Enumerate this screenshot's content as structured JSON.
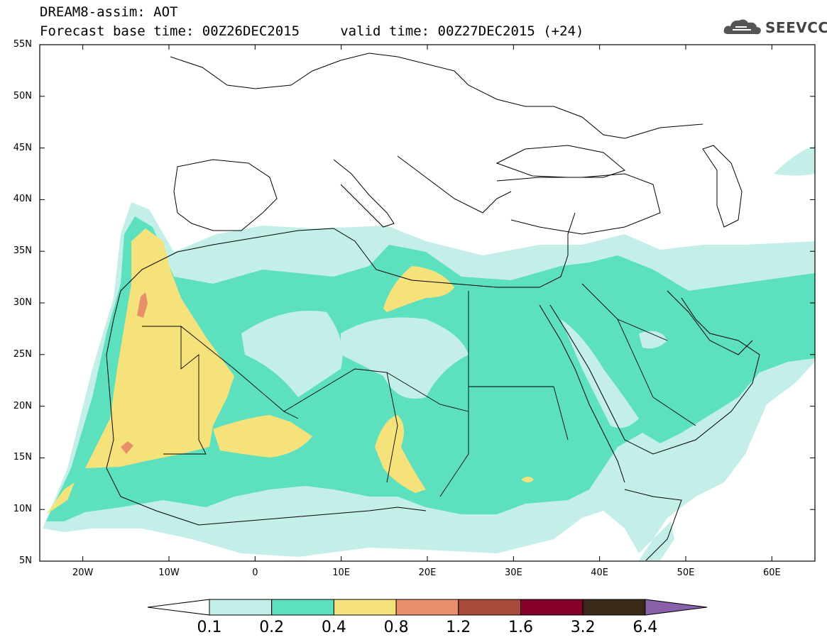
{
  "header": {
    "line1": "DREAM8-assim: AOT",
    "line2": "Forecast base time: 00Z26DEC2015     valid time: 00Z27DEC2015 (+24)",
    "logo_text": "SEEVCCC",
    "logo_icon": "cloud-icon"
  },
  "map": {
    "projection": "lat-lon",
    "lon_range": [
      -25,
      65
    ],
    "lat_range": [
      5,
      55
    ],
    "lat_labels": [
      "55N",
      "50N",
      "45N",
      "40N",
      "35N",
      "30N",
      "25N",
      "20N",
      "15N",
      "10N",
      "5N"
    ],
    "lon_labels": [
      "20W",
      "10W",
      "0",
      "10E",
      "20E",
      "30E",
      "40E",
      "50E",
      "60E"
    ],
    "field": "aerosol optical thickness",
    "coastline_color": "#000000"
  },
  "colorbar": {
    "labels": [
      "0.1",
      "0.2",
      "0.4",
      "0.8",
      "1.2",
      "1.6",
      "3.2",
      "6.4"
    ],
    "colors": [
      "#c3efe8",
      "#5ce0be",
      "#f6e27a",
      "#e8906a",
      "#a84a3a",
      "#860028",
      "#3a2818",
      "#8a60a8"
    ]
  }
}
